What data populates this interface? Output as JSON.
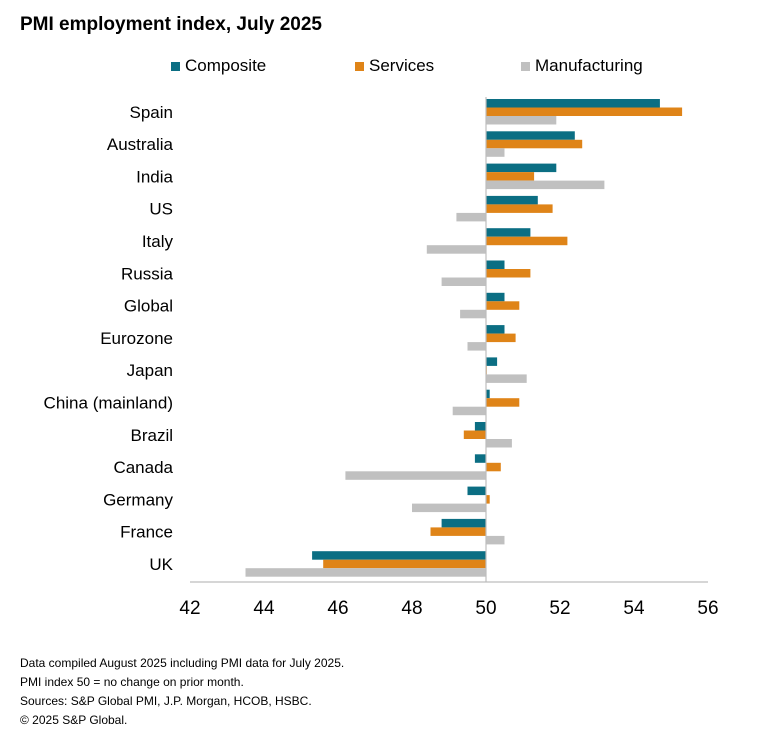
{
  "title": "PMI employment index, July 2025",
  "colors": {
    "Composite": "#0b6e83",
    "Services": "#df8418",
    "Manufacturing": "#c0c0c0",
    "axis": "#bdbdbd"
  },
  "chart_data": {
    "type": "bar",
    "orientation": "horizontal",
    "title": "PMI employment index, July 2025",
    "xlabel": "",
    "ylabel": "",
    "xlim": [
      42,
      56
    ],
    "x_ticks": [
      42,
      44,
      46,
      48,
      50,
      52,
      54,
      56
    ],
    "baseline": 50,
    "grid": false,
    "legend_position": "top",
    "categories": [
      "Spain",
      "Australia",
      "India",
      "US",
      "Italy",
      "Russia",
      "Global",
      "Eurozone",
      "Japan",
      "China (mainland)",
      "Brazil",
      "Canada",
      "Germany",
      "France",
      "UK"
    ],
    "series": [
      {
        "name": "Composite",
        "values": [
          54.7,
          52.4,
          51.9,
          51.4,
          51.2,
          50.5,
          50.5,
          50.5,
          50.3,
          50.1,
          49.7,
          49.7,
          49.5,
          48.8,
          45.3
        ]
      },
      {
        "name": "Services",
        "values": [
          55.3,
          52.6,
          51.3,
          51.8,
          52.2,
          51.2,
          50.9,
          50.8,
          50.0,
          50.9,
          49.4,
          50.4,
          50.1,
          48.5,
          45.6
        ]
      },
      {
        "name": "Manufacturing",
        "values": [
          51.9,
          50.5,
          53.2,
          49.2,
          48.4,
          48.8,
          49.3,
          49.5,
          51.1,
          49.1,
          50.7,
          46.2,
          48.0,
          50.5,
          43.5
        ]
      }
    ]
  },
  "footnotes": [
    "Data compiled August 2025 including PMI data for July 2025.",
    "PMI index 50 = no change on prior month.",
    "Sources: S&P Global PMI,  J.P. Morgan,  HCOB, HSBC.",
    "© 2025 S&P Global."
  ]
}
